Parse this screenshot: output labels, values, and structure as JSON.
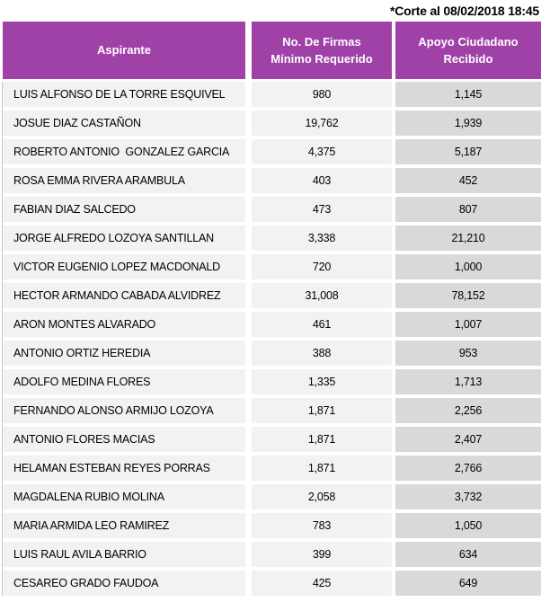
{
  "note": "*Corte al 08/02/2018 18:45",
  "colors": {
    "header_bg": "#a041a8",
    "header_fg": "#ffffff",
    "cell_bg": "#f2f2f2",
    "apoyo_bg": "#d9d9d9",
    "text_fg": "#000000",
    "border_gray": "#c8c8c8"
  },
  "table": {
    "columns": [
      {
        "label": "Aspirante"
      },
      {
        "label": "No. De Firmas Mínimo Requerido"
      },
      {
        "label": "Apoyo Ciudadano Recibido"
      }
    ],
    "rows": [
      {
        "aspirante": "LUIS ALFONSO DE LA TORRE ESQUIVEL",
        "firmas": "980",
        "apoyo": "1,145"
      },
      {
        "aspirante": "JOSUE DIAZ CASTAÑON",
        "firmas": "19,762",
        "apoyo": "1,939"
      },
      {
        "aspirante": "ROBERTO ANTONIO  GONZALEZ GARCIA",
        "firmas": "4,375",
        "apoyo": "5,187"
      },
      {
        "aspirante": "ROSA EMMA RIVERA ARAMBULA",
        "firmas": "403",
        "apoyo": "452"
      },
      {
        "aspirante": "FABIAN DIAZ SALCEDO",
        "firmas": "473",
        "apoyo": "807"
      },
      {
        "aspirante": "JORGE ALFREDO LOZOYA SANTILLAN",
        "firmas": "3,338",
        "apoyo": "21,210"
      },
      {
        "aspirante": "VICTOR EUGENIO LOPEZ MACDONALD",
        "firmas": "720",
        "apoyo": "1,000"
      },
      {
        "aspirante": "HECTOR ARMANDO CABADA ALVIDREZ",
        "firmas": "31,008",
        "apoyo": "78,152"
      },
      {
        "aspirante": "ARON MONTES ALVARADO",
        "firmas": "461",
        "apoyo": "1,007"
      },
      {
        "aspirante": "ANTONIO ORTIZ HEREDIA",
        "firmas": "388",
        "apoyo": "953"
      },
      {
        "aspirante": "ADOLFO MEDINA FLORES",
        "firmas": "1,335",
        "apoyo": "1,713"
      },
      {
        "aspirante": "FERNANDO ALONSO ARMIJO LOZOYA",
        "firmas": "1,871",
        "apoyo": "2,256"
      },
      {
        "aspirante": "ANTONIO FLORES MACIAS",
        "firmas": "1,871",
        "apoyo": "2,407"
      },
      {
        "aspirante": "HELAMAN ESTEBAN REYES PORRAS",
        "firmas": "1,871",
        "apoyo": "2,766"
      },
      {
        "aspirante": "MAGDALENA RUBIO MOLINA",
        "firmas": "2,058",
        "apoyo": "3,732"
      },
      {
        "aspirante": "MARIA ARMIDA LEO RAMIREZ",
        "firmas": "783",
        "apoyo": "1,050"
      },
      {
        "aspirante": "LUIS RAUL AVILA BARRIO",
        "firmas": "399",
        "apoyo": "634"
      },
      {
        "aspirante": "CESAREO GRADO FAUDOA",
        "firmas": "425",
        "apoyo": "649"
      }
    ]
  }
}
